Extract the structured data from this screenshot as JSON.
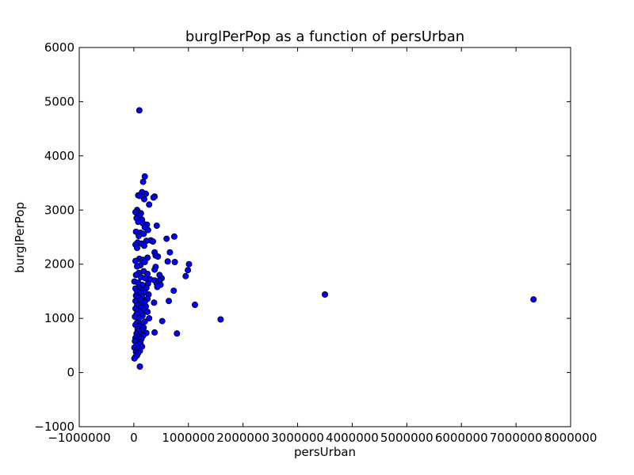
{
  "chart_data": {
    "type": "scatter",
    "title": "burglPerPop as a function of persUrban",
    "xlabel": "persUrban",
    "ylabel": "burglPerPop",
    "xlim": [
      -1000000,
      8000000
    ],
    "ylim": [
      -1000,
      6000
    ],
    "xticks": [
      -1000000,
      0,
      1000000,
      2000000,
      3000000,
      4000000,
      5000000,
      6000000,
      7000000,
      8000000
    ],
    "xtick_labels": [
      "−1000000",
      "0",
      "1000000",
      "2000000",
      "3000000",
      "4000000",
      "5000000",
      "6000000",
      "7000000",
      "8000000"
    ],
    "yticks": [
      -1000,
      0,
      1000,
      2000,
      3000,
      4000,
      5000,
      6000
    ],
    "ytick_labels": [
      "−1000",
      "0",
      "1000",
      "2000",
      "3000",
      "4000",
      "5000",
      "6000"
    ],
    "grid": false,
    "legend": "none",
    "marker_color": "#0000ff",
    "series": [
      {
        "points": [
          [
            100000,
            4840
          ],
          [
            200000,
            3620
          ],
          [
            170000,
            3520
          ],
          [
            220000,
            3300
          ],
          [
            150000,
            3330
          ],
          [
            80000,
            3270
          ],
          [
            110000,
            3260
          ],
          [
            190000,
            3200
          ],
          [
            380000,
            3250
          ],
          [
            360000,
            3230
          ],
          [
            280000,
            3100
          ],
          [
            60000,
            3000
          ],
          [
            30000,
            2960
          ],
          [
            90000,
            2950
          ],
          [
            130000,
            2940
          ],
          [
            110000,
            2900
          ],
          [
            50000,
            2850
          ],
          [
            150000,
            2820
          ],
          [
            80000,
            2780
          ],
          [
            170000,
            2750
          ],
          [
            240000,
            2730
          ],
          [
            420000,
            2710
          ],
          [
            200000,
            2680
          ],
          [
            260000,
            2630
          ],
          [
            40000,
            2600
          ],
          [
            120000,
            2580
          ],
          [
            180000,
            2560
          ],
          [
            90000,
            2520
          ],
          [
            600000,
            2470
          ],
          [
            740000,
            2510
          ],
          [
            310000,
            2440
          ],
          [
            230000,
            2430
          ],
          [
            350000,
            2420
          ],
          [
            70000,
            2400
          ],
          [
            140000,
            2380
          ],
          [
            30000,
            2360
          ],
          [
            190000,
            2340
          ],
          [
            60000,
            2300
          ],
          [
            660000,
            2220
          ],
          [
            380000,
            2220
          ],
          [
            400000,
            2160
          ],
          [
            440000,
            2140
          ],
          [
            250000,
            2120
          ],
          [
            100000,
            2100
          ],
          [
            160000,
            2080
          ],
          [
            30000,
            2060
          ],
          [
            200000,
            2040
          ],
          [
            620000,
            2050
          ],
          [
            750000,
            2040
          ],
          [
            1010000,
            2000
          ],
          [
            120000,
            1980
          ],
          [
            60000,
            1960
          ],
          [
            400000,
            1950
          ],
          [
            380000,
            1900
          ],
          [
            990000,
            1890
          ],
          [
            180000,
            1870
          ],
          [
            90000,
            1840
          ],
          [
            250000,
            1820
          ],
          [
            40000,
            1800
          ],
          [
            470000,
            1800
          ],
          [
            950000,
            1780
          ],
          [
            130000,
            1760
          ],
          [
            210000,
            1740
          ],
          [
            300000,
            1720
          ],
          [
            510000,
            1740
          ],
          [
            380000,
            1700
          ],
          [
            470000,
            1700
          ],
          [
            10000,
            1680
          ],
          [
            80000,
            1660
          ],
          [
            260000,
            1640
          ],
          [
            420000,
            1640
          ],
          [
            150000,
            1620
          ],
          [
            490000,
            1620
          ],
          [
            430000,
            1580
          ],
          [
            90000,
            1570
          ],
          [
            230000,
            1560
          ],
          [
            30000,
            1550
          ],
          [
            170000,
            1520
          ],
          [
            730000,
            1510
          ],
          [
            60000,
            1500
          ],
          [
            200000,
            1480
          ],
          [
            120000,
            1460
          ],
          [
            270000,
            1440
          ],
          [
            40000,
            1420
          ],
          [
            150000,
            1400
          ],
          [
            3500000,
            1440
          ],
          [
            90000,
            1380
          ],
          [
            250000,
            1360
          ],
          [
            130000,
            1340
          ],
          [
            7320000,
            1350
          ],
          [
            30000,
            1320
          ],
          [
            640000,
            1320
          ],
          [
            200000,
            1300
          ],
          [
            370000,
            1290
          ],
          [
            1120000,
            1250
          ],
          [
            100000,
            1260
          ],
          [
            60000,
            1240
          ],
          [
            220000,
            1220
          ],
          [
            140000,
            1200
          ],
          [
            30000,
            1180
          ],
          [
            180000,
            1160
          ],
          [
            80000,
            1140
          ],
          [
            250000,
            1120
          ],
          [
            120000,
            1100
          ],
          [
            50000,
            1080
          ],
          [
            160000,
            1050
          ],
          [
            20000,
            1030
          ],
          [
            280000,
            1000
          ],
          [
            100000,
            1010
          ],
          [
            1590000,
            980
          ],
          [
            520000,
            950
          ],
          [
            200000,
            940
          ],
          [
            60000,
            920
          ],
          [
            140000,
            900
          ],
          [
            30000,
            880
          ],
          [
            110000,
            850
          ],
          [
            180000,
            830
          ],
          [
            70000,
            800
          ],
          [
            150000,
            780
          ],
          [
            90000,
            760
          ],
          [
            380000,
            740
          ],
          [
            790000,
            720
          ],
          [
            230000,
            730
          ],
          [
            50000,
            720
          ],
          [
            130000,
            700
          ],
          [
            170000,
            680
          ],
          [
            80000,
            660
          ],
          [
            30000,
            640
          ],
          [
            140000,
            620
          ],
          [
            60000,
            600
          ],
          [
            20000,
            580
          ],
          [
            120000,
            560
          ],
          [
            90000,
            530
          ],
          [
            50000,
            500
          ],
          [
            150000,
            480
          ],
          [
            10000,
            460
          ],
          [
            70000,
            430
          ],
          [
            110000,
            400
          ],
          [
            40000,
            380
          ],
          [
            80000,
            360
          ],
          [
            60000,
            320
          ],
          [
            30000,
            290
          ],
          [
            10000,
            260
          ],
          [
            110000,
            110
          ]
        ]
      }
    ]
  }
}
